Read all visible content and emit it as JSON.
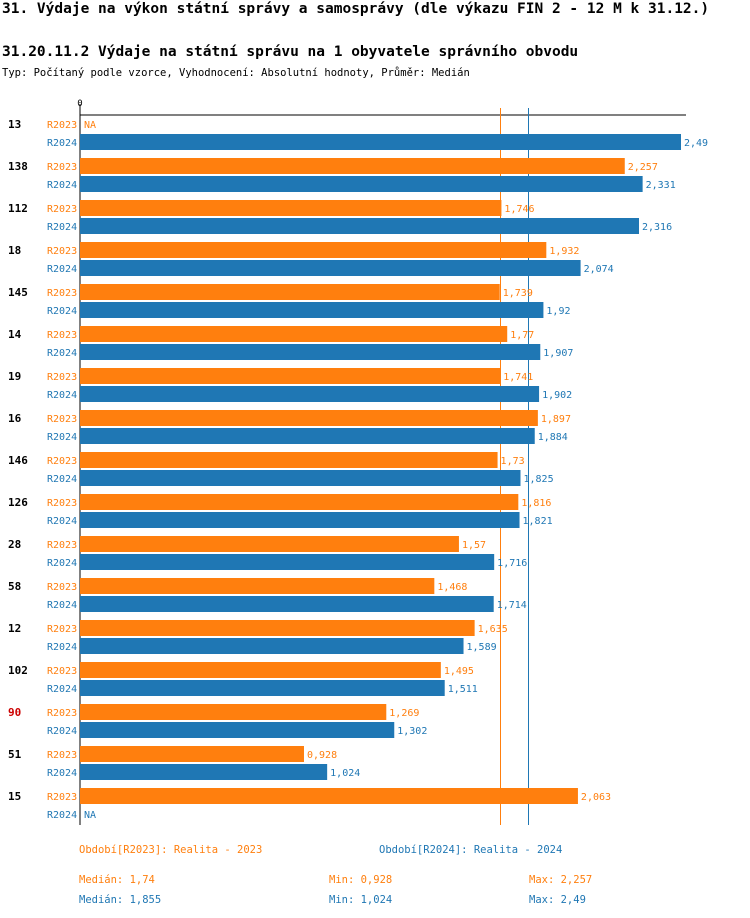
{
  "header": {
    "title": "31. Výdaje na výkon státní správy a samosprávy (dle výkazu FIN 2 - 12 M k 31.12.)",
    "subtitle": "31.20.11.2 Výdaje na státní správu na 1 obyvatele správního obvodu",
    "type_line": "Typ: Počítaný podle vzorce, Vyhodnocení: Absolutní hodnoty, Průměr: Medián"
  },
  "colors": {
    "r2023": "#ff7f0e",
    "r2024": "#1f77b4",
    "highlight": "#cc0000"
  },
  "chart_data": {
    "type": "bar",
    "orientation": "horizontal",
    "axis_zero_label": "0",
    "xlim": [
      0,
      2.49
    ],
    "series": [
      {
        "name": "R2023",
        "row_label": "R2023",
        "values": [
          null,
          2.257,
          1.746,
          1.932,
          1.739,
          1.77,
          1.741,
          1.897,
          1.73,
          1.816,
          1.57,
          1.468,
          1.635,
          1.495,
          1.269,
          0.928,
          2.063
        ],
        "labels": [
          "NA",
          "2,257",
          "1,746",
          "1,932",
          "1,739",
          "1,77",
          "1,741",
          "1,897",
          "1,73",
          "1,816",
          "1,57",
          "1,468",
          "1,635",
          "1,495",
          "1,269",
          "0,928",
          "2,063"
        ]
      },
      {
        "name": "R2024",
        "row_label": "R2024",
        "values": [
          2.49,
          2.331,
          2.316,
          2.074,
          1.92,
          1.907,
          1.902,
          1.884,
          1.825,
          1.821,
          1.716,
          1.714,
          1.589,
          1.511,
          1.302,
          1.024,
          null
        ],
        "labels": [
          "2,49",
          "2,331",
          "2,316",
          "2,074",
          "1,92",
          "1,907",
          "1,902",
          "1,884",
          "1,825",
          "1,821",
          "1,716",
          "1,714",
          "1,589",
          "1,511",
          "1,302",
          "1,024",
          "NA"
        ]
      }
    ],
    "categories": [
      "13",
      "138",
      "112",
      "18",
      "145",
      "14",
      "19",
      "16",
      "146",
      "126",
      "28",
      "58",
      "12",
      "102",
      "90",
      "51",
      "15"
    ],
    "highlighted_category": "90",
    "median_lines": [
      1.74,
      1.855
    ]
  },
  "legend": {
    "r2023": "Období[R2023]: Realita - 2023",
    "r2024": "Období[R2024]: Realita - 2024"
  },
  "stats": {
    "r2023": {
      "median": "Medián: 1,74",
      "min": "Min: 0,928",
      "max": "Max: 2,257"
    },
    "r2024": {
      "median": "Medián: 1,855",
      "min": "Min: 1,024",
      "max": "Max: 2,49"
    }
  }
}
